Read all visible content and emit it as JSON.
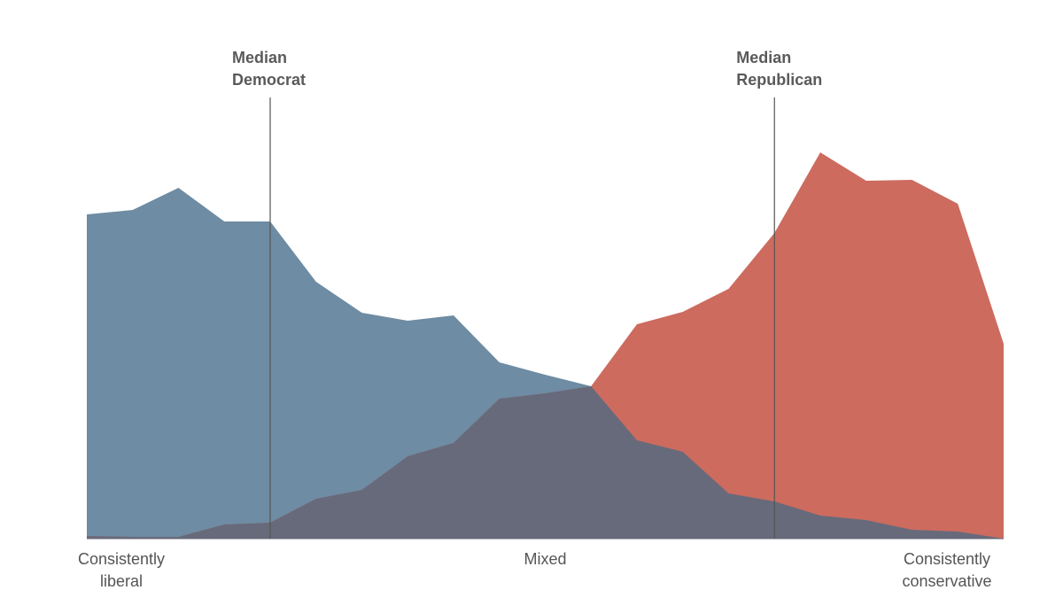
{
  "chart_data": {
    "type": "area",
    "xlim": [
      0,
      20
    ],
    "ylim": [
      0,
      450
    ],
    "series": [
      {
        "name": "Democrats",
        "color": "#6e8ca3",
        "values": [
          366,
          371,
          396,
          358,
          358,
          290,
          255,
          246,
          252,
          199,
          185,
          172,
          111,
          98,
          51,
          42,
          26,
          21,
          10,
          8,
          0
        ]
      },
      {
        "name": "Republicans",
        "color": "#cd6b5f",
        "values": [
          3,
          2,
          2,
          16,
          18,
          45,
          55,
          93,
          108,
          158,
          164,
          172,
          242,
          256,
          282,
          345,
          436,
          404,
          405,
          378,
          220
        ]
      }
    ],
    "overlap_color": "#676a7b",
    "medians": [
      {
        "label": [
          "Median",
          "Democrat"
        ],
        "x": 4
      },
      {
        "label": [
          "Median",
          "Republican"
        ],
        "x": 15
      }
    ],
    "axis_labels": [
      {
        "lines": [
          "Consistently",
          "liberal"
        ],
        "x": 0
      },
      {
        "lines": [
          "Mixed"
        ],
        "x": 10
      },
      {
        "lines": [
          "Consistently",
          "conservative"
        ],
        "x": 20
      }
    ]
  }
}
